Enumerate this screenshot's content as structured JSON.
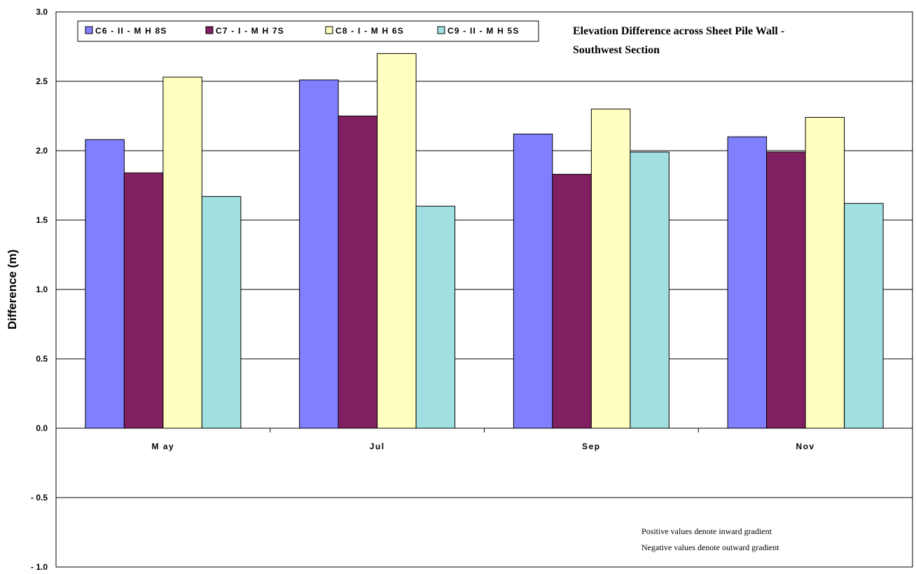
{
  "chart_data": {
    "type": "bar",
    "title_lines": [
      "Elevation Difference across Sheet Pile Wall -",
      "Southwest Section"
    ],
    "ylabel": "Difference (m)",
    "xlabel": "",
    "categories": [
      "M ay",
      "Jul",
      "Sep",
      "Nov"
    ],
    "ylim": [
      -1.0,
      3.0
    ],
    "yticks": [
      3.0,
      2.5,
      2.0,
      1.5,
      1.0,
      0.5,
      0.0,
      -0.5,
      -1.0
    ],
    "ytick_labels": [
      "3.0",
      "2.5",
      "2.0",
      "1.5",
      "1.0",
      "0.5",
      "0.0",
      "- 0.5",
      "- 1.0"
    ],
    "grid": true,
    "legend_position": "top-left",
    "series": [
      {
        "name": "C6 - II - M H 8S",
        "color": "#8080ff",
        "values": [
          2.08,
          2.51,
          2.12,
          2.1
        ]
      },
      {
        "name": "C7 - I - M H 7S",
        "color": "#802060",
        "values": [
          1.84,
          2.25,
          1.83,
          1.99
        ]
      },
      {
        "name": "C8 - I - M H 6S",
        "color": "#ffffc0",
        "values": [
          2.53,
          2.7,
          2.3,
          2.24
        ]
      },
      {
        "name": "C9 - II - M H 5S",
        "color": "#a0e0e0",
        "values": [
          1.67,
          1.6,
          1.99,
          1.62
        ]
      }
    ],
    "annotations": [
      "Positive values denote inward gradient",
      "Negative values denote outward gradient"
    ]
  }
}
